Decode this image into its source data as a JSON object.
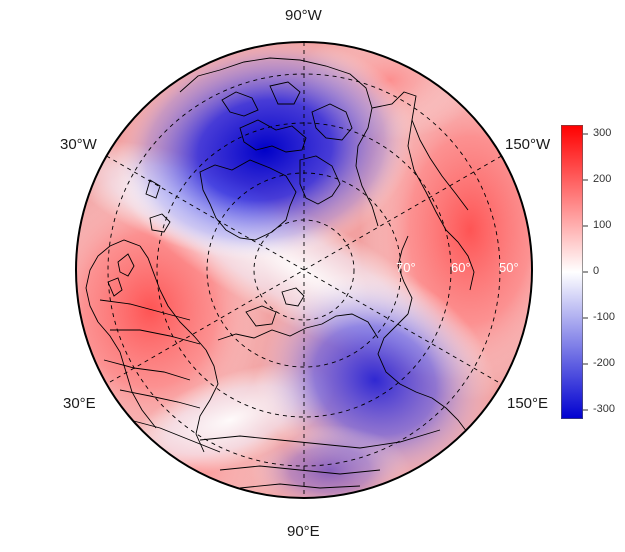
{
  "map": {
    "projection": "north-polar-stereographic",
    "field_colors": {
      "negative": "#0000d0",
      "neutral": "#ffffff",
      "positive": "#ff0000"
    },
    "longitude_labels": {
      "top": "90°W",
      "bottom": "90°E",
      "upper_left": "30°W",
      "upper_right": "150°W",
      "lower_left": "30°E",
      "lower_right": "150°E"
    },
    "latitude_labels": [
      "70°",
      "60°",
      "50°"
    ],
    "graticule_style": "dashed",
    "coastline_color": "#000000"
  },
  "colorbar": {
    "min": -320,
    "max": 320,
    "ticks": [
      "300",
      "200",
      "100",
      "0",
      "-100",
      "-200",
      "-300"
    ],
    "colors": [
      "#0000d0",
      "#ffffff",
      "#ff0000"
    ]
  }
}
